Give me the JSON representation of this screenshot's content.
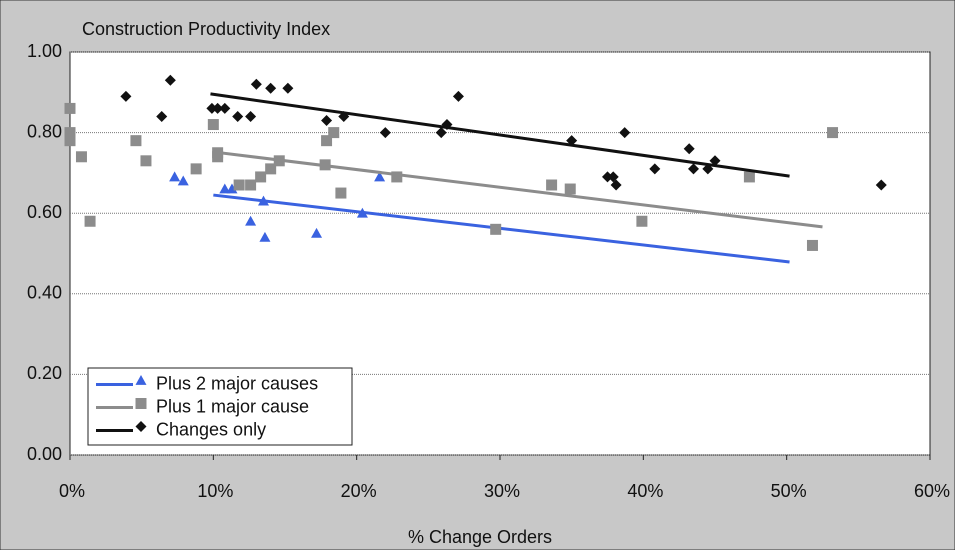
{
  "chart_data": {
    "type": "scatter",
    "title": "Construction Productivity Index",
    "x_label": "% Change Orders",
    "xlim": [
      0,
      60
    ],
    "ylim": [
      0,
      1
    ],
    "xticks": [
      {
        "value": 0,
        "label": "0%"
      },
      {
        "value": 10,
        "label": "10%"
      },
      {
        "value": 20,
        "label": "20%"
      },
      {
        "value": 30,
        "label": "30%"
      },
      {
        "value": 40,
        "label": "40%"
      },
      {
        "value": 50,
        "label": "50%"
      },
      {
        "value": 60,
        "label": "60%"
      }
    ],
    "yticks": [
      {
        "value": 0,
        "label": "0.00"
      },
      {
        "value": 0.2,
        "label": "0.20"
      },
      {
        "value": 0.4,
        "label": "0.40"
      },
      {
        "value": 0.6,
        "label": "0.60"
      },
      {
        "value": 0.8,
        "label": "0.80"
      },
      {
        "value": 1,
        "label": "1.00"
      }
    ],
    "grid": true,
    "legend": "lower left",
    "series": [
      {
        "name": "Plus 2 major causes",
        "color": "#3a62e0",
        "marker": "triangle",
        "x": [
          7.3,
          7.9,
          10.8,
          11.3,
          12.6,
          13.5,
          13.6,
          17.2,
          20.4,
          21.6
        ],
        "values": [
          0.69,
          0.68,
          0.66,
          0.66,
          0.58,
          0.63,
          0.54,
          0.55,
          0.6,
          0.69
        ],
        "trend": {
          "x": [
            10,
            50.2
          ],
          "values": [
            0.645,
            0.479
          ]
        }
      },
      {
        "name": "Plus 1 major cause",
        "color": "#8c8c8c",
        "marker": "square",
        "x": [
          0,
          0,
          0,
          0.8,
          1.4,
          4.6,
          5.3,
          8.8,
          10,
          10.3,
          10.3,
          11.8,
          12.6,
          13.3,
          14,
          14.6,
          17.8,
          17.9,
          18.4,
          18.9,
          22.8,
          29.7,
          33.6,
          34.9,
          39.9,
          47.4,
          51.8,
          53.2
        ],
        "values": [
          0.86,
          0.8,
          0.78,
          0.74,
          0.58,
          0.78,
          0.73,
          0.71,
          0.82,
          0.75,
          0.74,
          0.67,
          0.67,
          0.69,
          0.71,
          0.73,
          0.72,
          0.78,
          0.8,
          0.65,
          0.69,
          0.56,
          0.67,
          0.66,
          0.58,
          0.69,
          0.52,
          0.8
        ],
        "trend": {
          "x": [
            10,
            52.5
          ],
          "values": [
            0.752,
            0.566
          ]
        }
      },
      {
        "name": "Changes only",
        "color": "#111111",
        "marker": "diamond",
        "x": [
          3.9,
          6.4,
          7,
          9.9,
          10.3,
          10.8,
          11.7,
          12.6,
          13,
          14,
          15.2,
          17.9,
          19.1,
          22,
          27.1,
          25.9,
          26.3,
          35,
          37.5,
          37.9,
          38.1,
          38.7,
          40.8,
          43.2,
          43.5,
          44.5,
          45,
          56.6
        ],
        "values": [
          0.89,
          0.84,
          0.93,
          0.86,
          0.86,
          0.86,
          0.84,
          0.84,
          0.92,
          0.91,
          0.91,
          0.83,
          0.84,
          0.8,
          0.89,
          0.8,
          0.82,
          0.78,
          0.69,
          0.69,
          0.67,
          0.8,
          0.71,
          0.76,
          0.71,
          0.71,
          0.73,
          0.67
        ],
        "trend": {
          "x": [
            9.8,
            50.2
          ],
          "values": [
            0.896,
            0.692
          ]
        }
      }
    ]
  }
}
